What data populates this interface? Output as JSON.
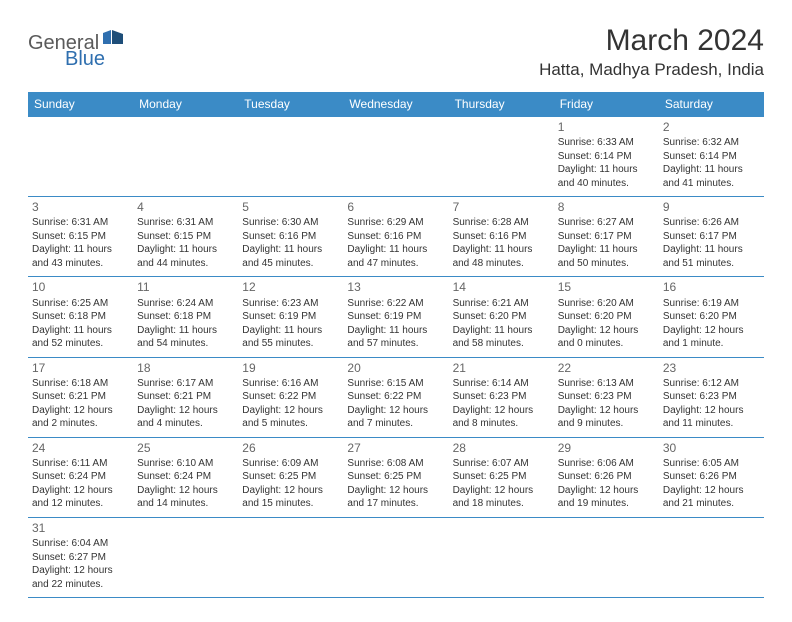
{
  "logo": {
    "general": "General",
    "blue": "Blue"
  },
  "title": "March 2024",
  "location": "Hatta, Madhya Pradesh, India",
  "colors": {
    "header_bg": "#3B8BC6",
    "header_text": "#ffffff",
    "border": "#3B8BC6",
    "text": "#333333",
    "logo_gray": "#5a5a5a",
    "logo_blue": "#2F6FAF"
  },
  "days_of_week": [
    "Sunday",
    "Monday",
    "Tuesday",
    "Wednesday",
    "Thursday",
    "Friday",
    "Saturday"
  ],
  "weeks": [
    [
      null,
      null,
      null,
      null,
      null,
      {
        "n": "1",
        "sr": "6:33 AM",
        "ss": "6:14 PM",
        "dl": "11 hours and 40 minutes."
      },
      {
        "n": "2",
        "sr": "6:32 AM",
        "ss": "6:14 PM",
        "dl": "11 hours and 41 minutes."
      }
    ],
    [
      {
        "n": "3",
        "sr": "6:31 AM",
        "ss": "6:15 PM",
        "dl": "11 hours and 43 minutes."
      },
      {
        "n": "4",
        "sr": "6:31 AM",
        "ss": "6:15 PM",
        "dl": "11 hours and 44 minutes."
      },
      {
        "n": "5",
        "sr": "6:30 AM",
        "ss": "6:16 PM",
        "dl": "11 hours and 45 minutes."
      },
      {
        "n": "6",
        "sr": "6:29 AM",
        "ss": "6:16 PM",
        "dl": "11 hours and 47 minutes."
      },
      {
        "n": "7",
        "sr": "6:28 AM",
        "ss": "6:16 PM",
        "dl": "11 hours and 48 minutes."
      },
      {
        "n": "8",
        "sr": "6:27 AM",
        "ss": "6:17 PM",
        "dl": "11 hours and 50 minutes."
      },
      {
        "n": "9",
        "sr": "6:26 AM",
        "ss": "6:17 PM",
        "dl": "11 hours and 51 minutes."
      }
    ],
    [
      {
        "n": "10",
        "sr": "6:25 AM",
        "ss": "6:18 PM",
        "dl": "11 hours and 52 minutes."
      },
      {
        "n": "11",
        "sr": "6:24 AM",
        "ss": "6:18 PM",
        "dl": "11 hours and 54 minutes."
      },
      {
        "n": "12",
        "sr": "6:23 AM",
        "ss": "6:19 PM",
        "dl": "11 hours and 55 minutes."
      },
      {
        "n": "13",
        "sr": "6:22 AM",
        "ss": "6:19 PM",
        "dl": "11 hours and 57 minutes."
      },
      {
        "n": "14",
        "sr": "6:21 AM",
        "ss": "6:20 PM",
        "dl": "11 hours and 58 minutes."
      },
      {
        "n": "15",
        "sr": "6:20 AM",
        "ss": "6:20 PM",
        "dl": "12 hours and 0 minutes."
      },
      {
        "n": "16",
        "sr": "6:19 AM",
        "ss": "6:20 PM",
        "dl": "12 hours and 1 minute."
      }
    ],
    [
      {
        "n": "17",
        "sr": "6:18 AM",
        "ss": "6:21 PM",
        "dl": "12 hours and 2 minutes."
      },
      {
        "n": "18",
        "sr": "6:17 AM",
        "ss": "6:21 PM",
        "dl": "12 hours and 4 minutes."
      },
      {
        "n": "19",
        "sr": "6:16 AM",
        "ss": "6:22 PM",
        "dl": "12 hours and 5 minutes."
      },
      {
        "n": "20",
        "sr": "6:15 AM",
        "ss": "6:22 PM",
        "dl": "12 hours and 7 minutes."
      },
      {
        "n": "21",
        "sr": "6:14 AM",
        "ss": "6:23 PM",
        "dl": "12 hours and 8 minutes."
      },
      {
        "n": "22",
        "sr": "6:13 AM",
        "ss": "6:23 PM",
        "dl": "12 hours and 9 minutes."
      },
      {
        "n": "23",
        "sr": "6:12 AM",
        "ss": "6:23 PM",
        "dl": "12 hours and 11 minutes."
      }
    ],
    [
      {
        "n": "24",
        "sr": "6:11 AM",
        "ss": "6:24 PM",
        "dl": "12 hours and 12 minutes."
      },
      {
        "n": "25",
        "sr": "6:10 AM",
        "ss": "6:24 PM",
        "dl": "12 hours and 14 minutes."
      },
      {
        "n": "26",
        "sr": "6:09 AM",
        "ss": "6:25 PM",
        "dl": "12 hours and 15 minutes."
      },
      {
        "n": "27",
        "sr": "6:08 AM",
        "ss": "6:25 PM",
        "dl": "12 hours and 17 minutes."
      },
      {
        "n": "28",
        "sr": "6:07 AM",
        "ss": "6:25 PM",
        "dl": "12 hours and 18 minutes."
      },
      {
        "n": "29",
        "sr": "6:06 AM",
        "ss": "6:26 PM",
        "dl": "12 hours and 19 minutes."
      },
      {
        "n": "30",
        "sr": "6:05 AM",
        "ss": "6:26 PM",
        "dl": "12 hours and 21 minutes."
      }
    ],
    [
      {
        "n": "31",
        "sr": "6:04 AM",
        "ss": "6:27 PM",
        "dl": "12 hours and 22 minutes."
      },
      null,
      null,
      null,
      null,
      null,
      null
    ]
  ],
  "labels": {
    "sunrise": "Sunrise:",
    "sunset": "Sunset:",
    "daylight": "Daylight:"
  }
}
